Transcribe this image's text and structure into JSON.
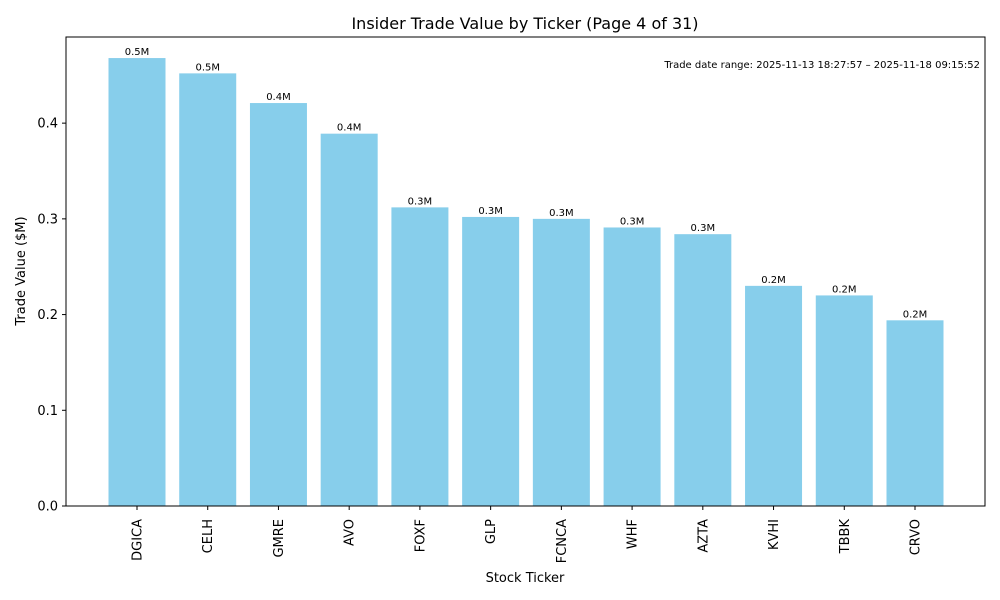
{
  "chart_data": {
    "type": "bar",
    "title": "Insider Trade Value by Ticker (Page 4 of 31)",
    "xlabel": "Stock Ticker",
    "ylabel": "Trade Value ($M)",
    "ylim": [
      0,
      0.49
    ],
    "yticks": [
      0.0,
      0.1,
      0.2,
      0.3,
      0.4
    ],
    "ytick_labels": [
      "0.0",
      "0.1",
      "0.2",
      "0.3",
      "0.4"
    ],
    "categories": [
      "DGICA",
      "CELH",
      "GMRE",
      "AVO",
      "FOXF",
      "GLP",
      "FCNCA",
      "WHF",
      "AZTA",
      "KVHI",
      "TBBK",
      "CRVO"
    ],
    "values": [
      0.468,
      0.452,
      0.421,
      0.389,
      0.312,
      0.302,
      0.3,
      0.291,
      0.284,
      0.23,
      0.22,
      0.194
    ],
    "data_labels": [
      "0.5M",
      "0.5M",
      "0.4M",
      "0.4M",
      "0.3M",
      "0.3M",
      "0.3M",
      "0.3M",
      "0.3M",
      "0.2M",
      "0.2M",
      "0.2M"
    ],
    "annotation": "Trade date range: 2025-11-13 18:27:57 – 2025-11-18 09:15:52",
    "bar_color": "#87CEEB",
    "grid": false
  }
}
